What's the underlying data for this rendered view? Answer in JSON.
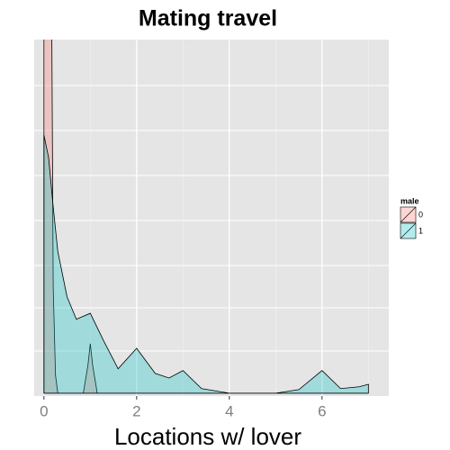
{
  "chart_data": {
    "type": "density",
    "title": "Mating travel",
    "x_label": "Locations w/ lover",
    "legend_title": "male",
    "xlim": [
      -0.21,
      7.44
    ],
    "ylim": [
      -0.008,
      1
    ],
    "xticks": [
      0,
      2,
      4,
      6
    ],
    "grid": true,
    "series": [
      {
        "name": "0",
        "color": "#F8766D",
        "x": [
          0,
          0.05,
          0.15,
          0.2,
          0.25,
          0.3,
          0.85,
          0.95,
          1.0,
          1.05,
          1.15,
          7.0
        ],
        "values": [
          2.0,
          2.0,
          1.5,
          0.3,
          0.05,
          0,
          0,
          0.08,
          0.14,
          0.08,
          0,
          0
        ]
      },
      {
        "name": "1",
        "color": "#00BFC4",
        "x": [
          0,
          0.1,
          0.2,
          0.3,
          0.5,
          0.7,
          1.0,
          1.3,
          1.6,
          2.0,
          2.4,
          2.7,
          3.0,
          3.4,
          4.0,
          5.0,
          5.5,
          6.0,
          6.4,
          6.8,
          7.0
        ],
        "values": [
          0.73,
          0.667,
          0.527,
          0.4,
          0.272,
          0.209,
          0.226,
          0.145,
          0.069,
          0.127,
          0.056,
          0.043,
          0.064,
          0.013,
          0,
          0,
          0.01,
          0.064,
          0.013,
          0.018,
          0.025
        ]
      }
    ]
  }
}
